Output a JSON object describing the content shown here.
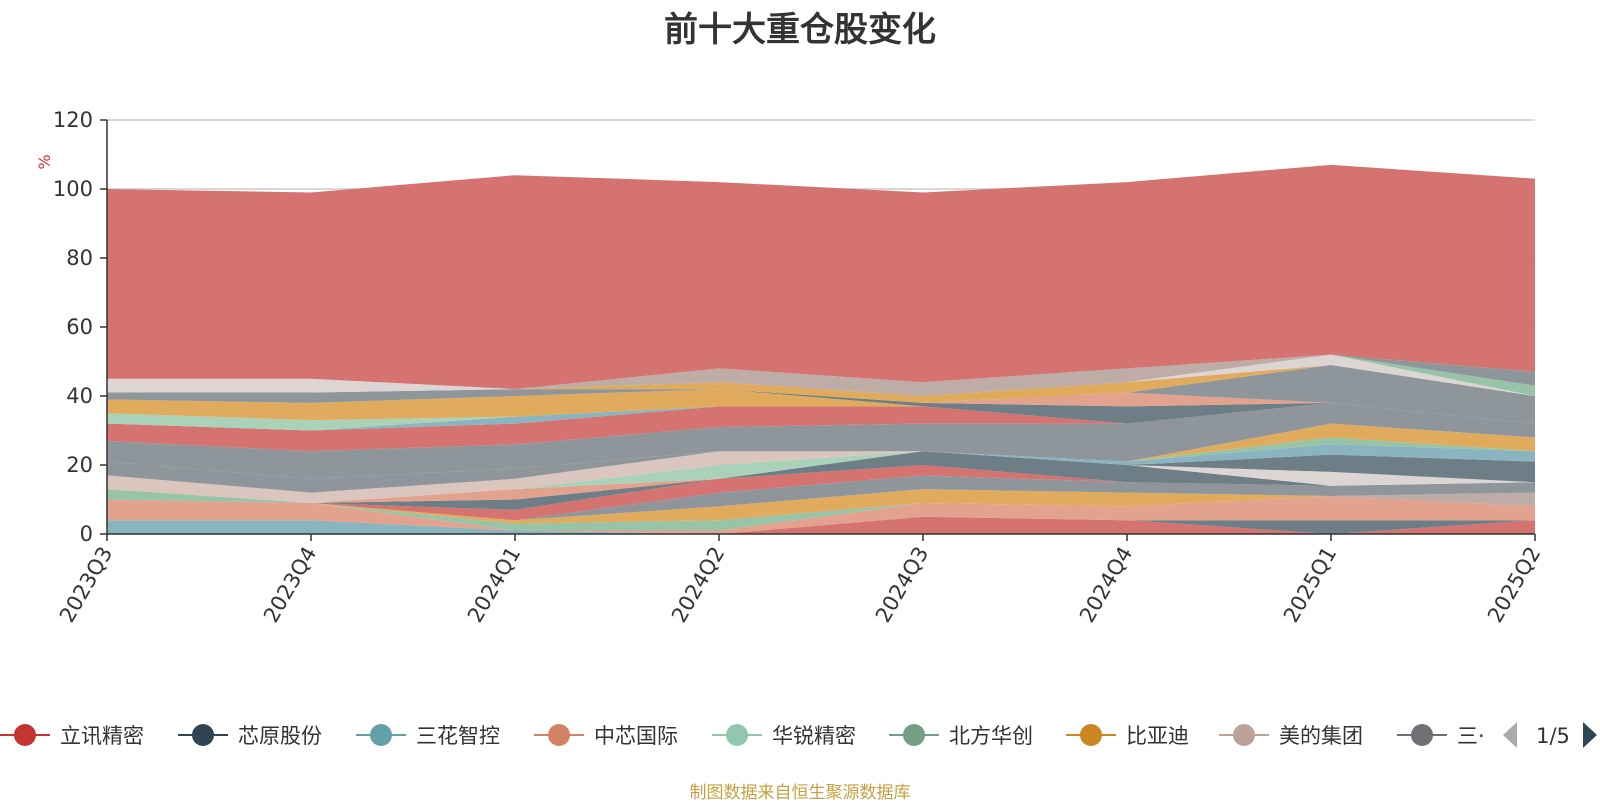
{
  "title": "前十大重仓股变化",
  "source_note": "制图数据来自恒生聚源数据库",
  "chart_data": {
    "type": "area",
    "stacked": true,
    "ylabel": "%",
    "ylim": [
      0,
      120
    ],
    "yticks": [
      0,
      20,
      40,
      60,
      80,
      100,
      120
    ],
    "categories": [
      "2023Q3",
      "2023Q4",
      "2024Q1",
      "2024Q2",
      "2024Q3",
      "2024Q4",
      "2025Q1",
      "2025Q2"
    ],
    "grid": true,
    "legend_position": "bottom",
    "series": [
      {
        "name": "",
        "color": "#d4706e",
        "values": [
          0,
          0,
          0,
          0,
          5,
          4,
          0,
          4
        ]
      },
      {
        "name": "",
        "color": "#6b7b85",
        "values": [
          0,
          0,
          0,
          0,
          0,
          0,
          4,
          0
        ]
      },
      {
        "name": "",
        "color": "#87b3bf",
        "values": [
          4,
          4,
          1,
          0,
          0,
          0,
          0,
          0
        ]
      },
      {
        "name": "",
        "color": "#e2a08c",
        "values": [
          6,
          5,
          0,
          1,
          4,
          4,
          7,
          4
        ]
      },
      {
        "name": "",
        "color": "#95c3a4",
        "values": [
          3,
          0,
          2,
          3,
          0,
          0,
          0,
          0
        ]
      },
      {
        "name": "",
        "color": "#e0a95a",
        "values": [
          0,
          0,
          1,
          4,
          4,
          4,
          0,
          0
        ]
      },
      {
        "name": "",
        "color": "#bdaaa4",
        "values": [
          0,
          0,
          0,
          0,
          0,
          0,
          0,
          4
        ]
      },
      {
        "name": "",
        "color": "#8c9499",
        "values": [
          0,
          0,
          0,
          4,
          4,
          3,
          3,
          3
        ]
      },
      {
        "name": "",
        "color": "#d4706e",
        "values": [
          0,
          0,
          3,
          4,
          3,
          0,
          0,
          0
        ]
      },
      {
        "name": "",
        "color": "#6b7b85",
        "values": [
          0,
          0,
          3,
          0,
          4,
          5,
          0,
          0
        ]
      },
      {
        "name": "",
        "color": "#e2a08c",
        "values": [
          0,
          0,
          3,
          0,
          0,
          0,
          0,
          0
        ]
      },
      {
        "name": "",
        "color": "#a7d1b8",
        "values": [
          0,
          0,
          0,
          4,
          0,
          0,
          0,
          0
        ]
      },
      {
        "name": "",
        "color": "#dcd4d2",
        "values": [
          0,
          0,
          0,
          0,
          0,
          0,
          4,
          0
        ]
      },
      {
        "name": "",
        "color": "#6b7b85",
        "values": [
          0,
          0,
          0,
          0,
          0,
          0,
          5,
          6
        ]
      },
      {
        "name": "",
        "color": "#d9c4be",
        "values": [
          4,
          3,
          3,
          4,
          0,
          0,
          0,
          0
        ]
      },
      {
        "name": "",
        "color": "#8c9499",
        "values": [
          4,
          4,
          3,
          0,
          0,
          0,
          0,
          0
        ]
      },
      {
        "name": "",
        "color": "#87b3bf",
        "values": [
          0,
          0,
          0,
          0,
          0,
          1,
          3,
          3
        ]
      },
      {
        "name": "",
        "color": "#95c3a4",
        "values": [
          0,
          0,
          0,
          0,
          0,
          0,
          2,
          0
        ]
      },
      {
        "name": "",
        "color": "#e0a95a",
        "values": [
          0,
          0,
          0,
          0,
          0,
          0,
          4,
          4
        ]
      },
      {
        "name": "",
        "color": "#8c9499",
        "values": [
          6,
          8,
          7,
          7,
          8,
          11,
          6,
          4
        ]
      },
      {
        "name": "",
        "color": "#d4706e",
        "values": [
          5,
          6,
          6,
          6,
          5,
          0,
          0,
          0
        ]
      },
      {
        "name": "",
        "color": "#87b3bf",
        "values": [
          0,
          0,
          2,
          0,
          0,
          0,
          0,
          0
        ]
      },
      {
        "name": "",
        "color": "#a7d1b8",
        "values": [
          3,
          3,
          0,
          0,
          0,
          0,
          0,
          0
        ]
      },
      {
        "name": "",
        "color": "#e0a95a",
        "values": [
          4,
          5,
          6,
          5,
          0,
          0,
          0,
          0
        ]
      },
      {
        "name": "",
        "color": "#6b7b85",
        "values": [
          0,
          0,
          0,
          0,
          1,
          5,
          0,
          0
        ]
      },
      {
        "name": "",
        "color": "#e2a08c",
        "values": [
          0,
          0,
          0,
          0,
          0,
          4,
          0,
          0
        ]
      },
      {
        "name": "",
        "color": "#8c9499",
        "values": [
          2,
          3,
          2,
          0,
          0,
          0,
          11,
          8
        ]
      },
      {
        "name": "",
        "color": "#e0a95a",
        "values": [
          0,
          0,
          0,
          2,
          2,
          3,
          0,
          0
        ]
      },
      {
        "name": "",
        "color": "#dcd4d2",
        "values": [
          4,
          4,
          0,
          0,
          0,
          0,
          3,
          0
        ]
      },
      {
        "name": "",
        "color": "#bdaaa4",
        "values": [
          0,
          0,
          0,
          4,
          4,
          4,
          0,
          0
        ]
      },
      {
        "name": "",
        "color": "#95c3a4",
        "values": [
          0,
          0,
          0,
          0,
          0,
          0,
          0,
          3
        ]
      },
      {
        "name": "",
        "color": "#8c9499",
        "values": [
          0,
          0,
          0,
          0,
          0,
          0,
          0,
          4
        ]
      },
      {
        "name": "",
        "color": "#d4706e",
        "values": [
          55,
          54,
          62,
          54,
          55,
          54,
          55,
          56
        ]
      }
    ]
  },
  "legend": {
    "page_indicator": "1/5",
    "items": [
      {
        "label": "立讯精密",
        "color": "#c23531"
      },
      {
        "label": "芯原股份",
        "color": "#2f4554"
      },
      {
        "label": "三花智控",
        "color": "#61a0a8"
      },
      {
        "label": "中芯国际",
        "color": "#d48265"
      },
      {
        "label": "华锐精密",
        "color": "#91c7ae"
      },
      {
        "label": "北方华创",
        "color": "#749f83"
      },
      {
        "label": "比亚迪",
        "color": "#ca8622"
      },
      {
        "label": "美的集团",
        "color": "#bda29a"
      },
      {
        "label": "三·",
        "color": "#6e7074"
      }
    ]
  }
}
